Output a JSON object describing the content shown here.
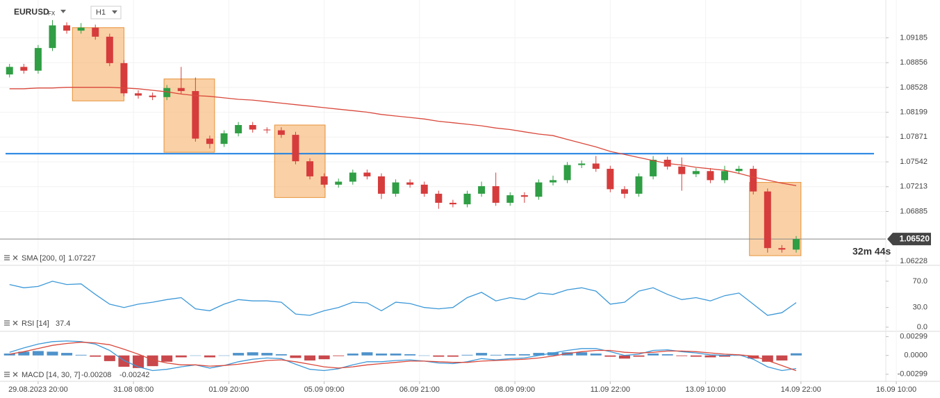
{
  "header": {
    "symbol": "EURUSD",
    "market": "FX",
    "timeframe": "H1",
    "countdown": "32m 44s"
  },
  "chart_data": [
    {
      "type": "candlestick",
      "x": [
        -0.3,
        -0.15,
        0,
        0.15,
        0.3,
        0.45,
        0.6,
        0.75,
        0.9,
        1.05,
        1.2,
        1.35,
        1.5,
        1.65,
        1.8,
        1.95,
        2.1,
        2.25,
        2.4,
        2.55,
        2.7,
        2.85,
        3,
        3.15,
        3.3,
        3.45,
        3.6,
        3.75,
        3.9,
        4.05,
        4.2,
        4.35,
        4.5,
        4.65,
        4.8,
        4.95,
        5.1,
        5.25,
        5.4,
        5.55,
        5.7,
        5.85,
        6,
        6.15,
        6.3,
        6.45,
        6.6,
        6.75,
        6.9,
        7.05,
        7.2,
        7.35,
        7.5,
        7.65,
        7.8,
        7.95
      ],
      "open": [
        1.087,
        1.088,
        1.0875,
        1.0905,
        1.0935,
        1.0928,
        1.0932,
        1.092,
        1.0885,
        1.0845,
        1.0842,
        1.084,
        1.0852,
        1.0848,
        1.0785,
        1.0778,
        1.0792,
        1.0803,
        1.0797,
        1.0796,
        1.079,
        1.0755,
        1.0735,
        1.0724,
        1.0728,
        1.074,
        1.0735,
        1.0712,
        1.0727,
        1.0724,
        1.0712,
        1.07,
        1.0698,
        1.0712,
        1.0722,
        1.07,
        1.071,
        1.0708,
        1.0727,
        1.073,
        1.075,
        1.0752,
        1.0745,
        1.0718,
        1.0712,
        1.0735,
        1.0757,
        1.0748,
        1.0738,
        1.0742,
        1.073,
        1.0742,
        1.0745,
        1.0715,
        1.064,
        1.0638
      ],
      "high": [
        1.0884,
        1.0884,
        1.0909,
        1.0942,
        1.0939,
        1.0938,
        1.0936,
        1.0924,
        1.0889,
        1.0849,
        1.0846,
        1.0856,
        1.088,
        1.0866,
        1.0789,
        1.0796,
        1.0807,
        1.0807,
        1.08,
        1.08,
        1.0794,
        1.0759,
        1.0739,
        1.0732,
        1.0744,
        1.0744,
        1.0739,
        1.0731,
        1.0731,
        1.0728,
        1.0716,
        1.0704,
        1.0716,
        1.0728,
        1.074,
        1.0714,
        1.0714,
        1.0731,
        1.0736,
        1.0754,
        1.0756,
        1.0762,
        1.0749,
        1.0722,
        1.0739,
        1.0762,
        1.0761,
        1.076,
        1.0746,
        1.0746,
        1.0749,
        1.0749,
        1.0749,
        1.0719,
        1.0644,
        1.0656
      ],
      "low": [
        1.0866,
        1.0871,
        1.0871,
        1.0901,
        1.0924,
        1.0924,
        1.0916,
        1.0881,
        1.0841,
        1.0838,
        1.0836,
        1.0836,
        1.0844,
        1.0781,
        1.0772,
        1.0774,
        1.0788,
        1.0793,
        1.0792,
        1.0786,
        1.0751,
        1.0731,
        1.072,
        1.072,
        1.0724,
        1.0731,
        1.0705,
        1.0708,
        1.072,
        1.0708,
        1.0692,
        1.0694,
        1.0694,
        1.0708,
        1.0696,
        1.0696,
        1.07,
        1.0704,
        1.0723,
        1.0726,
        1.0746,
        1.0741,
        1.0714,
        1.0706,
        1.0708,
        1.0731,
        1.0744,
        1.0716,
        1.0734,
        1.0726,
        1.0726,
        1.0738,
        1.0711,
        1.0634,
        1.0634,
        1.0634
      ],
      "close": [
        1.088,
        1.0875,
        1.0905,
        1.0935,
        1.0928,
        1.0932,
        1.092,
        1.0885,
        1.0845,
        1.0842,
        1.084,
        1.0852,
        1.0848,
        1.0785,
        1.0778,
        1.0792,
        1.0803,
        1.0797,
        1.0796,
        1.079,
        1.0755,
        1.0735,
        1.0724,
        1.0728,
        1.074,
        1.0735,
        1.0712,
        1.0727,
        1.0724,
        1.0712,
        1.07,
        1.0698,
        1.0712,
        1.0722,
        1.07,
        1.071,
        1.0708,
        1.0727,
        1.073,
        1.075,
        1.0752,
        1.0745,
        1.0718,
        1.0712,
        1.0735,
        1.0757,
        1.0748,
        1.0738,
        1.0742,
        1.073,
        1.0742,
        1.0745,
        1.0715,
        1.064,
        1.0638,
        1.0652
      ],
      "up_color": "#2f9e44",
      "down_color": "#d63c3c",
      "series": [
        {
          "name": "SMA [200, 0]",
          "color": "#d9483b",
          "values": [
            1.0851,
            1.0851,
            1.0852,
            1.0852,
            1.0853,
            1.0853,
            1.0853,
            1.0853,
            1.0852,
            1.0851,
            1.0849,
            1.0847,
            1.0844,
            1.0842,
            1.0841,
            1.0839,
            1.0837,
            1.0836,
            1.0834,
            1.0832,
            1.083,
            1.0828,
            1.0826,
            1.0824,
            1.0822,
            1.082,
            1.0817,
            1.0815,
            1.0813,
            1.0811,
            1.0808,
            1.0806,
            1.0804,
            1.0802,
            1.0799,
            1.0797,
            1.0794,
            1.0791,
            1.0789,
            1.0784,
            1.0779,
            1.0774,
            1.0768,
            1.0764,
            1.076,
            1.0756,
            1.0752,
            1.075,
            1.0747,
            1.0745,
            1.0743,
            1.0739,
            1.0734,
            1.073,
            1.0726,
            1.07227
          ]
        }
      ],
      "hline": {
        "value": 1.0765,
        "color": "#1a7fe0"
      },
      "price_line": {
        "value": 1.0652,
        "label": "1.06520"
      },
      "zones": [
        {
          "x": [
            0.36,
            0.9
          ],
          "y": [
            1.0835,
            1.0932
          ]
        },
        {
          "x": [
            1.32,
            1.85
          ],
          "y": [
            1.0767,
            1.0864
          ]
        },
        {
          "x": [
            2.48,
            3.01
          ],
          "y": [
            1.0707,
            1.0803
          ]
        },
        {
          "x": [
            7.46,
            8.0
          ],
          "y": [
            1.063,
            1.0727
          ]
        }
      ],
      "zone_color": "#f6b26b",
      "xlim": [
        -0.4,
        8.89
      ],
      "ylim": [
        1.0619,
        1.0964
      ],
      "yticks": [
        1.09185,
        1.08856,
        1.08528,
        1.08199,
        1.07871,
        1.07542,
        1.07213,
        1.06885,
        1.06228
      ],
      "xticks": [
        {
          "value": 0,
          "label": "29.08.2023  20:00"
        },
        {
          "value": 1,
          "label": "31.08  08:00"
        },
        {
          "value": 2,
          "label": "01.09  20:00"
        },
        {
          "value": 3,
          "label": "05.09  09:00"
        },
        {
          "value": 4,
          "label": "06.09  21:00"
        },
        {
          "value": 5,
          "label": "08.09  09:00"
        },
        {
          "value": 6,
          "label": "11.09  22:00"
        },
        {
          "value": 7,
          "label": "13.09  10:00"
        },
        {
          "value": 8,
          "label": "14.09  22:00"
        },
        {
          "value": 9,
          "label": "16.09  10:00"
        }
      ],
      "grid": true
    },
    {
      "type": "line",
      "name": "RSI [14]",
      "series": [
        {
          "color": "#3c98d8",
          "values": [
            65,
            60,
            62,
            70,
            65,
            66,
            50,
            35,
            30,
            35,
            38,
            42,
            45,
            28,
            25,
            35,
            42,
            40,
            40,
            38,
            20,
            18,
            25,
            30,
            38,
            37,
            25,
            38,
            36,
            30,
            28,
            30,
            45,
            53,
            40,
            45,
            42,
            52,
            50,
            57,
            60,
            55,
            35,
            38,
            55,
            60,
            50,
            42,
            45,
            40,
            48,
            52,
            35,
            18,
            22,
            37.4
          ]
        }
      ],
      "ylim": [
        0,
        90
      ],
      "yticks": [
        {
          "value": 70,
          "label": "70.0"
        },
        {
          "value": 30,
          "label": "30.0"
        },
        {
          "value": 0,
          "label": "0.0"
        }
      ]
    },
    {
      "type": "macd",
      "name": "MACD [14, 30, 7]",
      "series": [
        {
          "type": "bar",
          "color": "#2f7fc1",
          "negative_color": "#c0282d",
          "values": [
            0.0003,
            0.0006,
            0.0007,
            0.0006,
            0.0004,
            0.0001,
            -0.0002,
            -0.0009,
            -0.0018,
            -0.002,
            -0.0017,
            -0.001,
            -0.0003,
            0,
            -0.0003,
            0,
            0.0004,
            0.0005,
            0.0004,
            0.0002,
            -0.0004,
            -0.0008,
            -0.0006,
            -0.0001,
            0.0003,
            0.0005,
            0.0003,
            0.0003,
            0.0002,
            0,
            -0.0002,
            -0.0002,
            0.0001,
            0.0004,
            0.0001,
            0.0002,
            0.0002,
            0.0004,
            0.0005,
            0.0005,
            0.0005,
            0.0003,
            -0.0002,
            -0.0005,
            -0.0002,
            0.0003,
            0.0002,
            -0.0001,
            -0.0002,
            -0.0003,
            -0.0002,
            0,
            -0.0005,
            -0.001,
            -0.0008,
            0.00034
          ]
        },
        {
          "type": "line",
          "color": "#3c98d8",
          "values": [
            0.0005,
            0.0012,
            0.0018,
            0.0022,
            0.0023,
            0.0022,
            0.0018,
            0.0008,
            -0.0008,
            -0.0018,
            -0.0024,
            -0.0022,
            -0.0018,
            -0.0015,
            -0.002,
            -0.0016,
            -0.001,
            -0.0006,
            -0.0004,
            -0.0005,
            -0.0014,
            -0.0022,
            -0.0024,
            -0.0021,
            -0.0015,
            -0.001,
            -0.001,
            -0.0008,
            -0.0007,
            -0.0009,
            -0.0012,
            -0.0013,
            -0.001,
            -0.0005,
            -0.0007,
            -0.0005,
            -0.0004,
            0,
            0.0004,
            0.0008,
            0.0011,
            0.0011,
            0.0006,
            0,
            0.0002,
            0.0008,
            0.0009,
            0.0006,
            0.0004,
            0.0001,
            0,
            0.0001,
            -0.0006,
            -0.0018,
            -0.0024,
            -0.00208
          ]
        },
        {
          "type": "line",
          "color": "#d9483b",
          "values": [
            0.0002,
            0.0006,
            0.0011,
            0.0016,
            0.0019,
            0.0021,
            0.002,
            0.0017,
            0.001,
            0.0002,
            -0.0007,
            -0.0012,
            -0.0015,
            -0.0015,
            -0.0017,
            -0.0016,
            -0.0014,
            -0.0011,
            -0.0008,
            -0.0007,
            -0.001,
            -0.0014,
            -0.0018,
            -0.002,
            -0.0018,
            -0.0015,
            -0.0013,
            -0.0011,
            -0.0009,
            -0.0009,
            -0.001,
            -0.0011,
            -0.0011,
            -0.0009,
            -0.0008,
            -0.0007,
            -0.0006,
            -0.0004,
            -0.0001,
            0.0003,
            0.0006,
            0.0008,
            0.0008,
            0.0005,
            0.0004,
            0.0005,
            0.0007,
            0.0007,
            0.0006,
            0.0004,
            0.0002,
            0.0001,
            -0.0001,
            -0.0008,
            -0.0016,
            -0.00242
          ]
        }
      ],
      "ylim": [
        -0.004,
        0.0035
      ],
      "yticks": [
        0.00299,
        {
          "value": 0,
          "label": "0.0000"
        },
        -0.00299
      ]
    }
  ]
}
